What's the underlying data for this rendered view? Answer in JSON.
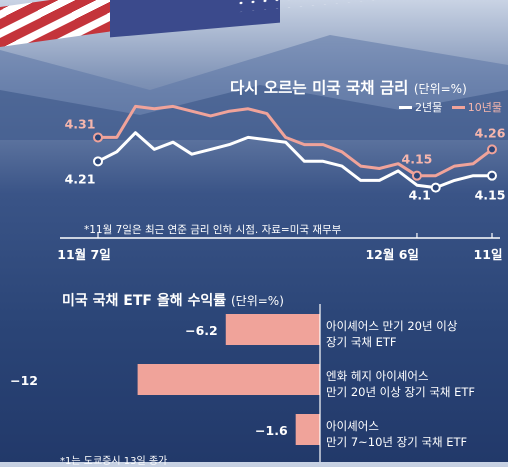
{
  "chart_data": [
    {
      "type": "line",
      "title": "다시 오르는 미국 국채 금리",
      "unit": "(단위=%)",
      "note": "*11월 7일은 최근 연준 금리 인하 시점.  자료=미국 재무부",
      "x_tick_labels": [
        "11월 7일",
        "12월 6일",
        "11일"
      ],
      "series": [
        {
          "name": "2년물",
          "color": "#ffffff",
          "start_label": "4.21",
          "min_label": "4.1",
          "end_label": "4.15",
          "values": [
            4.21,
            4.25,
            4.33,
            4.26,
            4.29,
            4.24,
            4.26,
            4.28,
            4.31,
            4.3,
            4.29,
            4.21,
            4.21,
            4.19,
            4.13,
            4.13,
            4.17,
            4.11,
            4.1,
            4.13,
            4.15,
            4.15
          ]
        },
        {
          "name": "10년물",
          "color": "#f0a39a",
          "start_label": "4.31",
          "min_label": "4.15",
          "end_label": "4.26",
          "values": [
            4.31,
            4.31,
            4.44,
            4.43,
            4.44,
            4.42,
            4.4,
            4.42,
            4.43,
            4.41,
            4.31,
            4.28,
            4.28,
            4.25,
            4.19,
            4.18,
            4.2,
            4.15,
            4.15,
            4.19,
            4.2,
            4.26
          ]
        }
      ]
    },
    {
      "type": "bar",
      "title": "미국 국채 ETF 올해 수익률",
      "unit": "(단위=%)",
      "bar_color": "#f0a39a",
      "categories": [
        [
          "아이셰어스 만기 20년 이상",
          "장기 국채 ETF"
        ],
        [
          "엔화 헤지 아이셰어스",
          "만기 20년 이상 장기 국채 ETF"
        ],
        [
          "아이셰어스",
          "만기 7~10년 장기 국채 ETF"
        ]
      ],
      "values": [
        -6.2,
        -12,
        -1.6
      ],
      "value_labels": [
        "−6.2",
        "−12",
        "−1.6"
      ],
      "footnote": "*1는 도쿄증시 13일 종가"
    }
  ]
}
